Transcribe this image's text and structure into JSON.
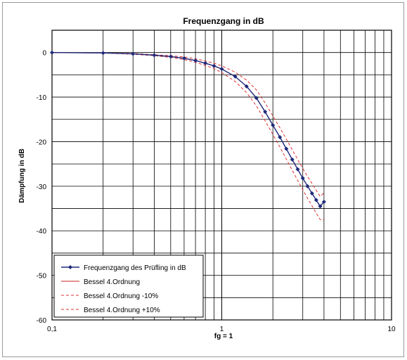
{
  "chart_data": {
    "type": "line",
    "title": "Frequenzgang in dB",
    "xlabel": "fg = 1",
    "ylabel": "Dämpfung in dB",
    "xscale": "log",
    "xlim": [
      0.1,
      10
    ],
    "ylim": [
      -60,
      5
    ],
    "xticks": [
      0.1,
      1,
      10
    ],
    "xtick_labels": [
      "0,1",
      "1",
      "10"
    ],
    "yticks": [
      0,
      -10,
      -20,
      -30,
      -40,
      -50,
      -60
    ],
    "ytick_labels": [
      "0",
      "-10",
      "-20",
      "-30",
      "-40",
      "-50",
      "-60"
    ],
    "grid": true,
    "legend_position": "bottom-left",
    "series": [
      {
        "name": "Frequenzgang des Prüfling in dB",
        "color": "#1f2a7a",
        "style": "solid-markers",
        "x": [
          0.1,
          0.2,
          0.3,
          0.4,
          0.5,
          0.6,
          0.7,
          0.8,
          0.9,
          1.0,
          1.2,
          1.4,
          1.6,
          1.8,
          2.0,
          2.2,
          2.4,
          2.6,
          2.8,
          3.0,
          3.2,
          3.4,
          3.6,
          3.8,
          4.0
        ],
        "y": [
          0.0,
          -0.1,
          -0.3,
          -0.6,
          -0.9,
          -1.3,
          -1.8,
          -2.4,
          -3.0,
          -3.7,
          -5.4,
          -7.6,
          -10.2,
          -13.3,
          -16.3,
          -19.0,
          -21.6,
          -24.0,
          -26.2,
          -28.2,
          -30.0,
          -31.6,
          -33.1,
          -34.5,
          -33.5
        ]
      },
      {
        "name": "Bessel 4.Ordnung",
        "color": "#cc2222",
        "style": "solid",
        "x": [
          0.1,
          0.2,
          0.3,
          0.4,
          0.5,
          0.6,
          0.7,
          0.8,
          0.9,
          1.0,
          1.2,
          1.4,
          1.6,
          1.8,
          2.0,
          2.2,
          2.4,
          2.6,
          2.8,
          3.0,
          3.2,
          3.4,
          3.6,
          3.8,
          4.0
        ],
        "y": [
          0.0,
          -0.1,
          -0.3,
          -0.6,
          -0.9,
          -1.3,
          -1.8,
          -2.4,
          -3.0,
          -3.7,
          -5.4,
          -7.6,
          -10.2,
          -13.3,
          -16.3,
          -19.0,
          -21.6,
          -24.0,
          -26.2,
          -28.2,
          -30.0,
          -31.6,
          -33.1,
          -34.5,
          -33.5
        ]
      },
      {
        "name": "Bessel 4.Ordnung -10%",
        "color": "#e03030",
        "style": "dashed",
        "x": [
          0.1,
          0.2,
          0.3,
          0.4,
          0.5,
          0.6,
          0.7,
          0.8,
          0.9,
          1.0,
          1.2,
          1.4,
          1.6,
          1.8,
          2.0,
          2.2,
          2.4,
          2.6,
          2.8,
          3.0,
          3.2,
          3.4,
          3.6,
          3.8,
          4.0
        ],
        "y": [
          0.0,
          -0.1,
          -0.4,
          -0.7,
          -1.1,
          -1.6,
          -2.2,
          -2.9,
          -3.6,
          -4.5,
          -6.5,
          -9.0,
          -12.0,
          -15.3,
          -18.4,
          -21.2,
          -23.9,
          -26.4,
          -28.7,
          -30.8,
          -32.7,
          -34.4,
          -36.0,
          -37.5,
          -37.5
        ]
      },
      {
        "name": "Bessel 4.Ordnung +10%",
        "color": "#e03030",
        "style": "dashed",
        "x": [
          0.1,
          0.2,
          0.3,
          0.4,
          0.5,
          0.6,
          0.7,
          0.8,
          0.9,
          1.0,
          1.2,
          1.4,
          1.6,
          1.8,
          2.0,
          2.2,
          2.4,
          2.6,
          2.8,
          3.0,
          3.2,
          3.4,
          3.6,
          3.8,
          4.0
        ],
        "y": [
          0.0,
          -0.1,
          -0.2,
          -0.5,
          -0.7,
          -1.0,
          -1.4,
          -1.9,
          -2.4,
          -3.0,
          -4.4,
          -6.2,
          -8.4,
          -11.3,
          -14.2,
          -16.9,
          -19.4,
          -21.8,
          -24.0,
          -26.0,
          -27.8,
          -29.4,
          -30.9,
          -32.3,
          -31.5
        ]
      }
    ]
  }
}
